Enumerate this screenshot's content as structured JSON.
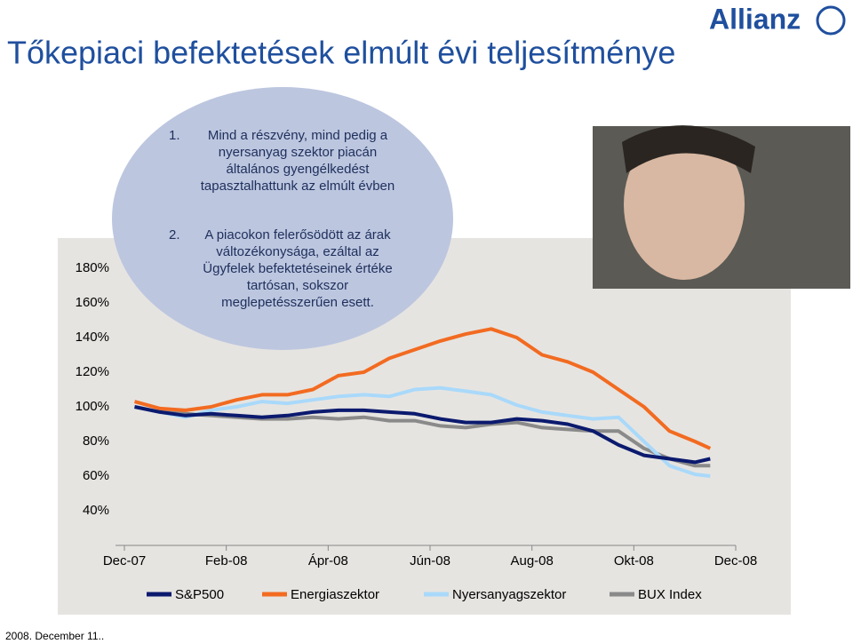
{
  "logo": "Allianz",
  "footer": "2008. December 11..",
  "chart_data": {
    "type": "line",
    "title": "Tőkepiaci befektetések elmúlt évi teljesítménye",
    "annotations": [
      {
        "number": "1.",
        "text": "Mind a részvény, mind pedig a nyersanyag szektor piacán általános gyengélkedést tapasztalhattunk az elmúlt évben"
      },
      {
        "number": "2.",
        "text": "A piacokon felerősödött az árak változékonysága, ezáltal az Ügyfelek befektetéseinek értéke tartósan, sokszor meglepetésszerűen esett."
      }
    ],
    "x": [
      0.2,
      0.7,
      1.2,
      1.7,
      2.2,
      2.7,
      3.2,
      3.7,
      4.2,
      4.7,
      5.2,
      5.7,
      6.2,
      6.7,
      7.2,
      7.7,
      8.2,
      8.7,
      9.2,
      9.7,
      10.2,
      10.7,
      11.2,
      11.5
    ],
    "xlim": [
      0,
      12
    ],
    "xticks": [
      {
        "value": 0,
        "label": "Dec-07"
      },
      {
        "value": 2,
        "label": "Feb-08"
      },
      {
        "value": 4,
        "label": "Ápr-08"
      },
      {
        "value": 6,
        "label": "Jún-08"
      },
      {
        "value": 8,
        "label": "Aug-08"
      },
      {
        "value": 10,
        "label": "Okt-08"
      },
      {
        "value": 12,
        "label": "Dec-08"
      }
    ],
    "ylim": [
      20,
      200
    ],
    "yticks": [
      {
        "value": 40,
        "label": "40%"
      },
      {
        "value": 60,
        "label": "60%"
      },
      {
        "value": 80,
        "label": "80%"
      },
      {
        "value": 100,
        "label": "100%"
      },
      {
        "value": 120,
        "label": "120%"
      },
      {
        "value": 140,
        "label": "140%"
      },
      {
        "value": 160,
        "label": "160%"
      },
      {
        "value": 180,
        "label": "180%"
      }
    ],
    "series": [
      {
        "name": "S&P500",
        "color": "#0b1a6e",
        "values": [
          100,
          97,
          95,
          96,
          95,
          94,
          95,
          97,
          98,
          98,
          97,
          96,
          93,
          91,
          91,
          93,
          92,
          90,
          86,
          78,
          72,
          70,
          68,
          70
        ]
      },
      {
        "name": "Energiaszektor",
        "color": "#f26b21",
        "values": [
          103,
          99,
          98,
          100,
          104,
          107,
          107,
          110,
          118,
          120,
          128,
          133,
          138,
          142,
          145,
          140,
          130,
          126,
          120,
          110,
          100,
          86,
          80,
          76
        ]
      },
      {
        "name": "Nyersanyagszektor",
        "color": "#a9d9fa",
        "values": [
          100,
          97,
          94,
          98,
          100,
          103,
          102,
          104,
          106,
          107,
          106,
          110,
          111,
          109,
          107,
          101,
          97,
          95,
          93,
          94,
          80,
          66,
          61,
          60
        ]
      },
      {
        "name": "BUX Index",
        "color": "#8a8a8a",
        "values": [
          100,
          97,
          96,
          95,
          94,
          93,
          93,
          94,
          93,
          94,
          92,
          92,
          89,
          88,
          90,
          91,
          88,
          87,
          86,
          86,
          76,
          70,
          66,
          66
        ]
      }
    ]
  }
}
